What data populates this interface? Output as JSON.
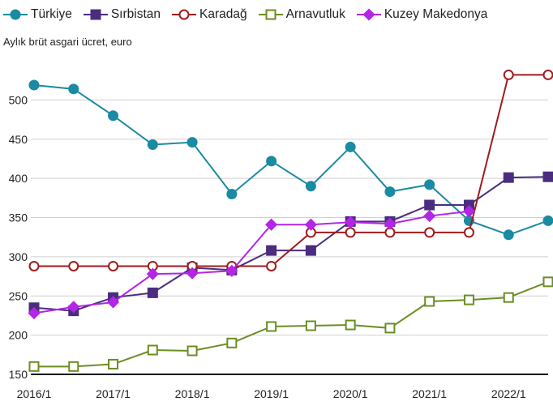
{
  "chart_data": {
    "type": "line",
    "ylabel": "Aylık brüt asgari ücret, euro",
    "ylim": [
      150,
      550
    ],
    "yticks": [
      150,
      200,
      250,
      300,
      350,
      400,
      450,
      500
    ],
    "x_tick_labels": [
      "2016/1",
      "2017/1",
      "2018/1",
      "2019/1",
      "2020/1",
      "2021/1",
      "2022/1"
    ],
    "x": [
      "2016/1",
      "2016/2",
      "2017/1",
      "2017/2",
      "2018/1",
      "2018/2",
      "2019/1",
      "2019/2",
      "2020/1",
      "2020/2",
      "2021/1",
      "2021/2",
      "2022/1",
      "2022/2"
    ],
    "legend_position": "top",
    "grid": "horizontal",
    "series": [
      {
        "name": "Türkiye",
        "color": "#1b8aa3",
        "marker": "circle",
        "filled": true,
        "values": [
          519,
          514,
          480,
          443,
          446,
          380,
          422,
          390,
          440,
          383,
          392,
          346,
          328,
          346
        ]
      },
      {
        "name": "Sırbistan",
        "color": "#4b2d7f",
        "marker": "square",
        "filled": true,
        "values": [
          235,
          231,
          248,
          254,
          286,
          283,
          308,
          308,
          345,
          345,
          366,
          366,
          401,
          402
        ]
      },
      {
        "name": "Karadağ",
        "color": "#a01c1c",
        "marker": "circle",
        "filled": false,
        "values": [
          288,
          288,
          288,
          288,
          288,
          288,
          288,
          331,
          331,
          331,
          331,
          331,
          532,
          532
        ]
      },
      {
        "name": "Arnavutluk",
        "color": "#6b8e23",
        "marker": "square",
        "filled": false,
        "values": [
          160,
          160,
          163,
          181,
          180,
          190,
          211,
          212,
          213,
          209,
          243,
          245,
          248,
          268
        ]
      },
      {
        "name": "Kuzey Makedonya",
        "color": "#b326e6",
        "marker": "diamond",
        "filled": true,
        "values": [
          228,
          236,
          242,
          278,
          279,
          282,
          341,
          341,
          344,
          342,
          352,
          358,
          null,
          null
        ]
      }
    ]
  }
}
